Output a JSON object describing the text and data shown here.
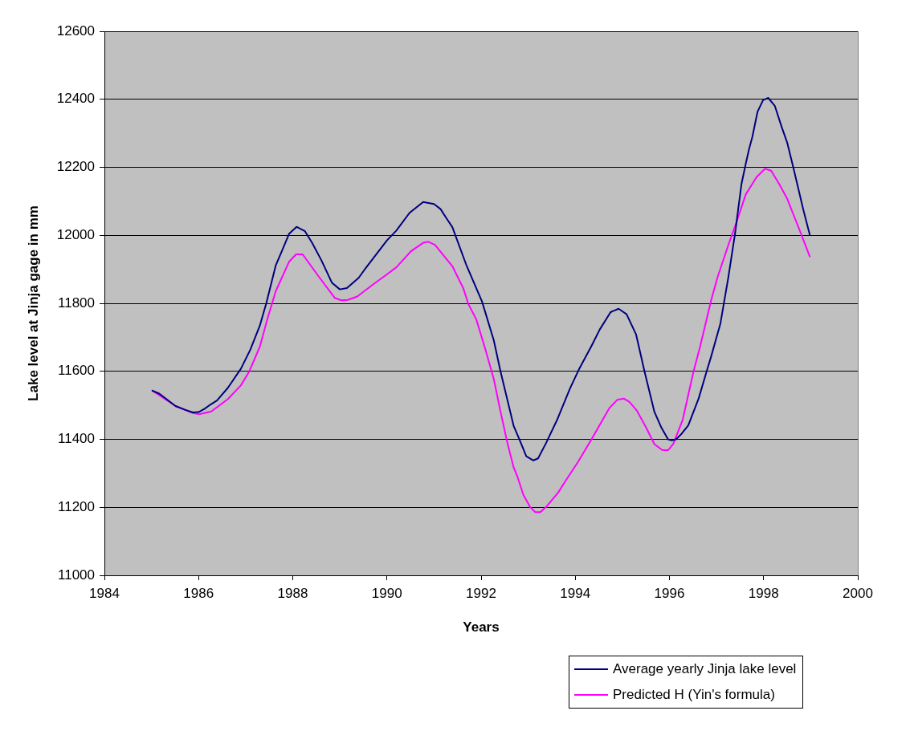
{
  "chart_data": {
    "type": "line",
    "xlabel": "Years",
    "ylabel": "Lake level at Jinja gage in mm",
    "xlim": [
      1984,
      2000
    ],
    "xticks": [
      1984,
      1986,
      1988,
      1990,
      1992,
      1994,
      1996,
      1998,
      2000
    ],
    "ylim": [
      11000,
      12600
    ],
    "yticks": [
      11000,
      11200,
      11400,
      11600,
      11800,
      12000,
      12200,
      12400,
      12600
    ],
    "grid": "y",
    "legend": "bottom right",
    "series": [
      {
        "name": "Average yearly Jinja lake level",
        "color": "#000080",
        "x": [
          1985.02,
          1985.17,
          1985.51,
          1985.71,
          1985.88,
          1986.0,
          1986.13,
          1986.25,
          1986.39,
          1986.62,
          1986.9,
          1987.1,
          1987.3,
          1987.44,
          1987.64,
          1987.78,
          1987.92,
          1988.08,
          1988.26,
          1988.41,
          1988.61,
          1988.83,
          1989.0,
          1989.15,
          1989.4,
          1989.52,
          1990.0,
          1990.2,
          1990.48,
          1990.77,
          1991.0,
          1991.14,
          1991.25,
          1991.39,
          1991.68,
          1992.02,
          1992.27,
          1992.41,
          1992.56,
          1992.69,
          1992.81,
          1992.96,
          1993.11,
          1993.21,
          1993.38,
          1993.61,
          1993.89,
          1994.09,
          1994.35,
          1994.52,
          1994.75,
          1994.92,
          1995.09,
          1995.29,
          1995.47,
          1995.68,
          1995.83,
          1995.97,
          1996.05,
          1996.14,
          1996.25,
          1996.4,
          1996.62,
          1996.79,
          1996.88,
          1997.08,
          1997.25,
          1997.39,
          1997.53,
          1997.62,
          1997.69,
          1997.76,
          1997.87,
          1997.99,
          1998.1,
          1998.24,
          1998.38,
          1998.5,
          1998.64,
          1998.84,
          1998.98
        ],
        "values": [
          11543,
          11534,
          11498,
          11487,
          11479,
          11480,
          11490,
          11502,
          11514,
          11551,
          11608,
          11664,
          11734,
          11801,
          11912,
          11957,
          12004,
          12025,
          12012,
          11978,
          11926,
          11861,
          11841,
          11845,
          11875,
          11898,
          11985,
          12014,
          12066,
          12098,
          12092,
          12077,
          12053,
          12024,
          11915,
          11805,
          11691,
          11601,
          11515,
          11440,
          11401,
          11350,
          11338,
          11344,
          11389,
          11456,
          11550,
          11609,
          11676,
          11723,
          11774,
          11784,
          11768,
          11709,
          11600,
          11481,
          11434,
          11400,
          11397,
          11400,
          11415,
          11441,
          11520,
          11600,
          11641,
          11739,
          11876,
          12002,
          12151,
          12210,
          12253,
          12289,
          12363,
          12398,
          12404,
          12380,
          12320,
          12273,
          12194,
          12077,
          12002
        ]
      },
      {
        "name": "Predicted H (Yin's formula)",
        "color": "#ff00ff",
        "x": [
          1985.02,
          1985.51,
          1985.88,
          1986.02,
          1986.27,
          1986.62,
          1986.9,
          1987.07,
          1987.3,
          1987.47,
          1987.64,
          1987.92,
          1988.07,
          1988.21,
          1988.55,
          1988.89,
          1989.03,
          1989.17,
          1989.37,
          1989.74,
          1989.97,
          1990.2,
          1990.51,
          1990.77,
          1990.88,
          1991.02,
          1991.39,
          1991.62,
          1991.73,
          1991.9,
          1992.1,
          1992.27,
          1992.41,
          1992.56,
          1992.69,
          1992.77,
          1992.9,
          1993.04,
          1993.15,
          1993.26,
          1993.38,
          1993.64,
          1993.78,
          1994.06,
          1994.35,
          1994.72,
          1994.89,
          1995.03,
          1995.15,
          1995.31,
          1995.5,
          1995.68,
          1995.85,
          1995.97,
          1996.08,
          1996.28,
          1996.51,
          1996.65,
          1996.88,
          1997.02,
          1997.25,
          1997.45,
          1997.62,
          1997.85,
          1998.03,
          1998.16,
          1998.33,
          1998.5,
          1998.61,
          1998.78,
          1998.98
        ],
        "values": [
          11543,
          11498,
          11477,
          11474,
          11482,
          11518,
          11559,
          11598,
          11672,
          11758,
          11836,
          11922,
          11944,
          11944,
          11879,
          11816,
          11809,
          11810,
          11820,
          11859,
          11882,
          11906,
          11953,
          11978,
          11981,
          11972,
          11909,
          11845,
          11798,
          11752,
          11660,
          11577,
          11483,
          11389,
          11318,
          11291,
          11236,
          11201,
          11186,
          11186,
          11201,
          11244,
          11275,
          11334,
          11401,
          11491,
          11516,
          11520,
          11510,
          11484,
          11436,
          11386,
          11368,
          11368,
          11386,
          11457,
          11599,
          11672,
          11806,
          11876,
          11971,
          12049,
          12120,
          12171,
          12196,
          12190,
          12151,
          12108,
          12069,
          12010,
          11938
        ]
      }
    ]
  }
}
